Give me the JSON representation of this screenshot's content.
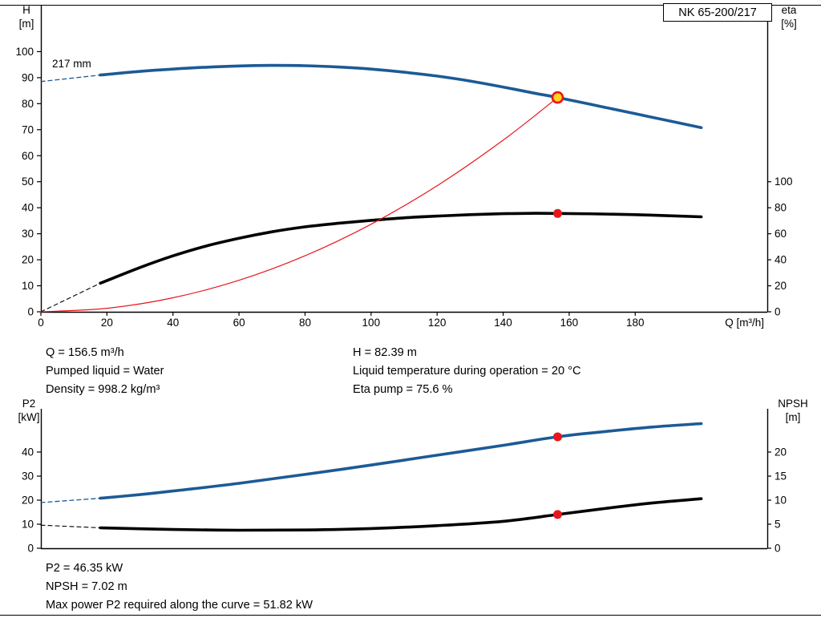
{
  "model_box": {
    "label": "NK 65-200/217"
  },
  "info_top": {
    "left_lines": [
      "Q = 156.5 m³/h",
      "Pumped liquid = Water",
      "Density = 998.2 kg/m³"
    ],
    "right_lines": [
      "H = 82.39 m",
      "Liquid temperature during operation = 20 °C",
      "Eta pump = 75.6 %"
    ]
  },
  "info_bottom": {
    "lines": [
      "P2 = 46.35 kW",
      "NPSH = 7.02 m",
      "Max power P2 required along the curve = 51.82 kW"
    ]
  },
  "colors": {
    "blue": "#1c5a96",
    "black": "#000000",
    "red": "#e8161c",
    "marker_yellow": "#ffd21e",
    "axis": "#000000"
  },
  "chart_data": [
    {
      "id": "head",
      "type": "line",
      "x_axis": {
        "label": "Q [m³/h]",
        "lim": [
          0,
          220
        ],
        "ticks": [
          0,
          20,
          40,
          60,
          80,
          100,
          120,
          140,
          160,
          180
        ]
      },
      "left_axis": {
        "title_lines": [
          "H",
          "[m]"
        ],
        "lim": [
          0,
          118
        ],
        "ticks": [
          0,
          10,
          20,
          30,
          40,
          50,
          60,
          70,
          80,
          90,
          100
        ]
      },
      "right_axis": {
        "title_lines": [
          "eta",
          "[%]"
        ],
        "lim": [
          0,
          236
        ],
        "ticks": [
          0,
          20,
          40,
          60,
          80,
          100
        ]
      },
      "annotations": [
        {
          "name": "impeller-diameter-label",
          "text": "217 mm",
          "q": 3.4,
          "v": 94,
          "axis": "left"
        }
      ],
      "curves": [
        {
          "name": "head-curve-dashed",
          "axis": "left",
          "color": "blue",
          "width": 1.3,
          "dash": "5 4",
          "points": [
            [
              0,
              88.5
            ],
            [
              18,
              91
            ]
          ]
        },
        {
          "name": "head-curve",
          "axis": "left",
          "color": "blue",
          "width": 3.6,
          "points": [
            [
              18,
              91
            ],
            [
              30,
              92.4
            ],
            [
              40,
              93.3
            ],
            [
              50,
              94.0
            ],
            [
              60,
              94.5
            ],
            [
              70,
              94.7
            ],
            [
              80,
              94.6
            ],
            [
              90,
              94.1
            ],
            [
              100,
              93.3
            ],
            [
              110,
              92.1
            ],
            [
              120,
              90.6
            ],
            [
              130,
              88.7
            ],
            [
              140,
              86.4
            ],
            [
              150,
              83.9
            ],
            [
              156.5,
              82.39
            ],
            [
              170,
              78.8
            ],
            [
              185,
              74.8
            ],
            [
              200,
              70.8
            ]
          ]
        },
        {
          "name": "eta-curve-dashed",
          "axis": "right",
          "color": "black",
          "width": 1.1,
          "dash": "5 4",
          "points": [
            [
              0,
              0
            ],
            [
              18,
              22
            ]
          ]
        },
        {
          "name": "eta-curve",
          "axis": "right",
          "color": "black",
          "width": 3.6,
          "points": [
            [
              18,
              22
            ],
            [
              30,
              34
            ],
            [
              40,
              43
            ],
            [
              50,
              50.5
            ],
            [
              60,
              56.5
            ],
            [
              70,
              61.5
            ],
            [
              80,
              65.3
            ],
            [
              90,
              68
            ],
            [
              100,
              70.3
            ],
            [
              110,
              72.2
            ],
            [
              120,
              73.6
            ],
            [
              130,
              74.7
            ],
            [
              140,
              75.4
            ],
            [
              150,
              75.7
            ],
            [
              156.5,
              75.6
            ],
            [
              170,
              75.2
            ],
            [
              185,
              74.3
            ],
            [
              200,
              73
            ]
          ]
        },
        {
          "name": "system-curve",
          "axis": "left",
          "color": "red",
          "width": 1.2,
          "points": [
            [
              0,
              0
            ],
            [
              20,
              1.35
            ],
            [
              40,
              5.38
            ],
            [
              60,
              12.11
            ],
            [
              80,
              21.53
            ],
            [
              100,
              33.65
            ],
            [
              120,
              48.45
            ],
            [
              140,
              65.95
            ],
            [
              156.5,
              82.39
            ]
          ]
        }
      ],
      "markers": [
        {
          "name": "duty-point",
          "axis": "left",
          "q": 156.5,
          "v": 82.39,
          "r": 6.5,
          "fill": "marker_yellow",
          "stroke": "red",
          "stroke_width": 2.6,
          "interactable": true
        },
        {
          "name": "eta-point",
          "axis": "right",
          "q": 156.5,
          "v": 75.6,
          "r": 5.5,
          "fill": "red",
          "stroke": "red",
          "stroke_width": 0,
          "interactable": false
        }
      ]
    },
    {
      "id": "power",
      "type": "line",
      "x_axis": {
        "label": "",
        "lim": [
          0,
          220
        ],
        "ticks": []
      },
      "left_axis": {
        "title_lines": [
          "P2",
          "[kW]"
        ],
        "lim": [
          0,
          58
        ],
        "ticks": [
          0,
          10,
          20,
          30,
          40
        ]
      },
      "right_axis": {
        "title_lines": [
          "NPSH",
          "[m]"
        ],
        "lim": [
          0,
          29
        ],
        "ticks": [
          0,
          5,
          10,
          15,
          20
        ]
      },
      "annotations": [],
      "curves": [
        {
          "name": "p2-curve-dashed",
          "axis": "left",
          "color": "blue",
          "width": 1.3,
          "dash": "5 4",
          "points": [
            [
              0,
              19
            ],
            [
              18,
              20.8
            ]
          ]
        },
        {
          "name": "p2-curve",
          "axis": "left",
          "color": "blue",
          "width": 3.6,
          "points": [
            [
              18,
              20.8
            ],
            [
              30,
              22.3
            ],
            [
              40,
              23.8
            ],
            [
              60,
              27.0
            ],
            [
              80,
              30.7
            ],
            [
              100,
              34.6
            ],
            [
              120,
              38.7
            ],
            [
              140,
              42.8
            ],
            [
              156.5,
              46.35
            ],
            [
              170,
              48.4
            ],
            [
              185,
              50.4
            ],
            [
              200,
              51.82
            ]
          ]
        },
        {
          "name": "npsh-curve-dashed",
          "axis": "right",
          "color": "black",
          "width": 1.1,
          "dash": "5 4",
          "points": [
            [
              0,
              4.8
            ],
            [
              18,
              4.25
            ]
          ]
        },
        {
          "name": "npsh-curve",
          "axis": "right",
          "color": "black",
          "width": 3.6,
          "points": [
            [
              18,
              4.25
            ],
            [
              40,
              3.9
            ],
            [
              60,
              3.75
            ],
            [
              80,
              3.8
            ],
            [
              100,
              4.1
            ],
            [
              120,
              4.7
            ],
            [
              140,
              5.6
            ],
            [
              156.5,
              7.02
            ],
            [
              170,
              8.2
            ],
            [
              185,
              9.4
            ],
            [
              200,
              10.3
            ]
          ]
        }
      ],
      "markers": [
        {
          "name": "p2-point",
          "axis": "left",
          "q": 156.5,
          "v": 46.35,
          "r": 5.5,
          "fill": "red",
          "stroke": "red",
          "stroke_width": 0,
          "interactable": false
        },
        {
          "name": "npsh-point",
          "axis": "right",
          "q": 156.5,
          "v": 7.02,
          "r": 5.5,
          "fill": "red",
          "stroke": "red",
          "stroke_width": 0,
          "interactable": false
        }
      ]
    }
  ]
}
